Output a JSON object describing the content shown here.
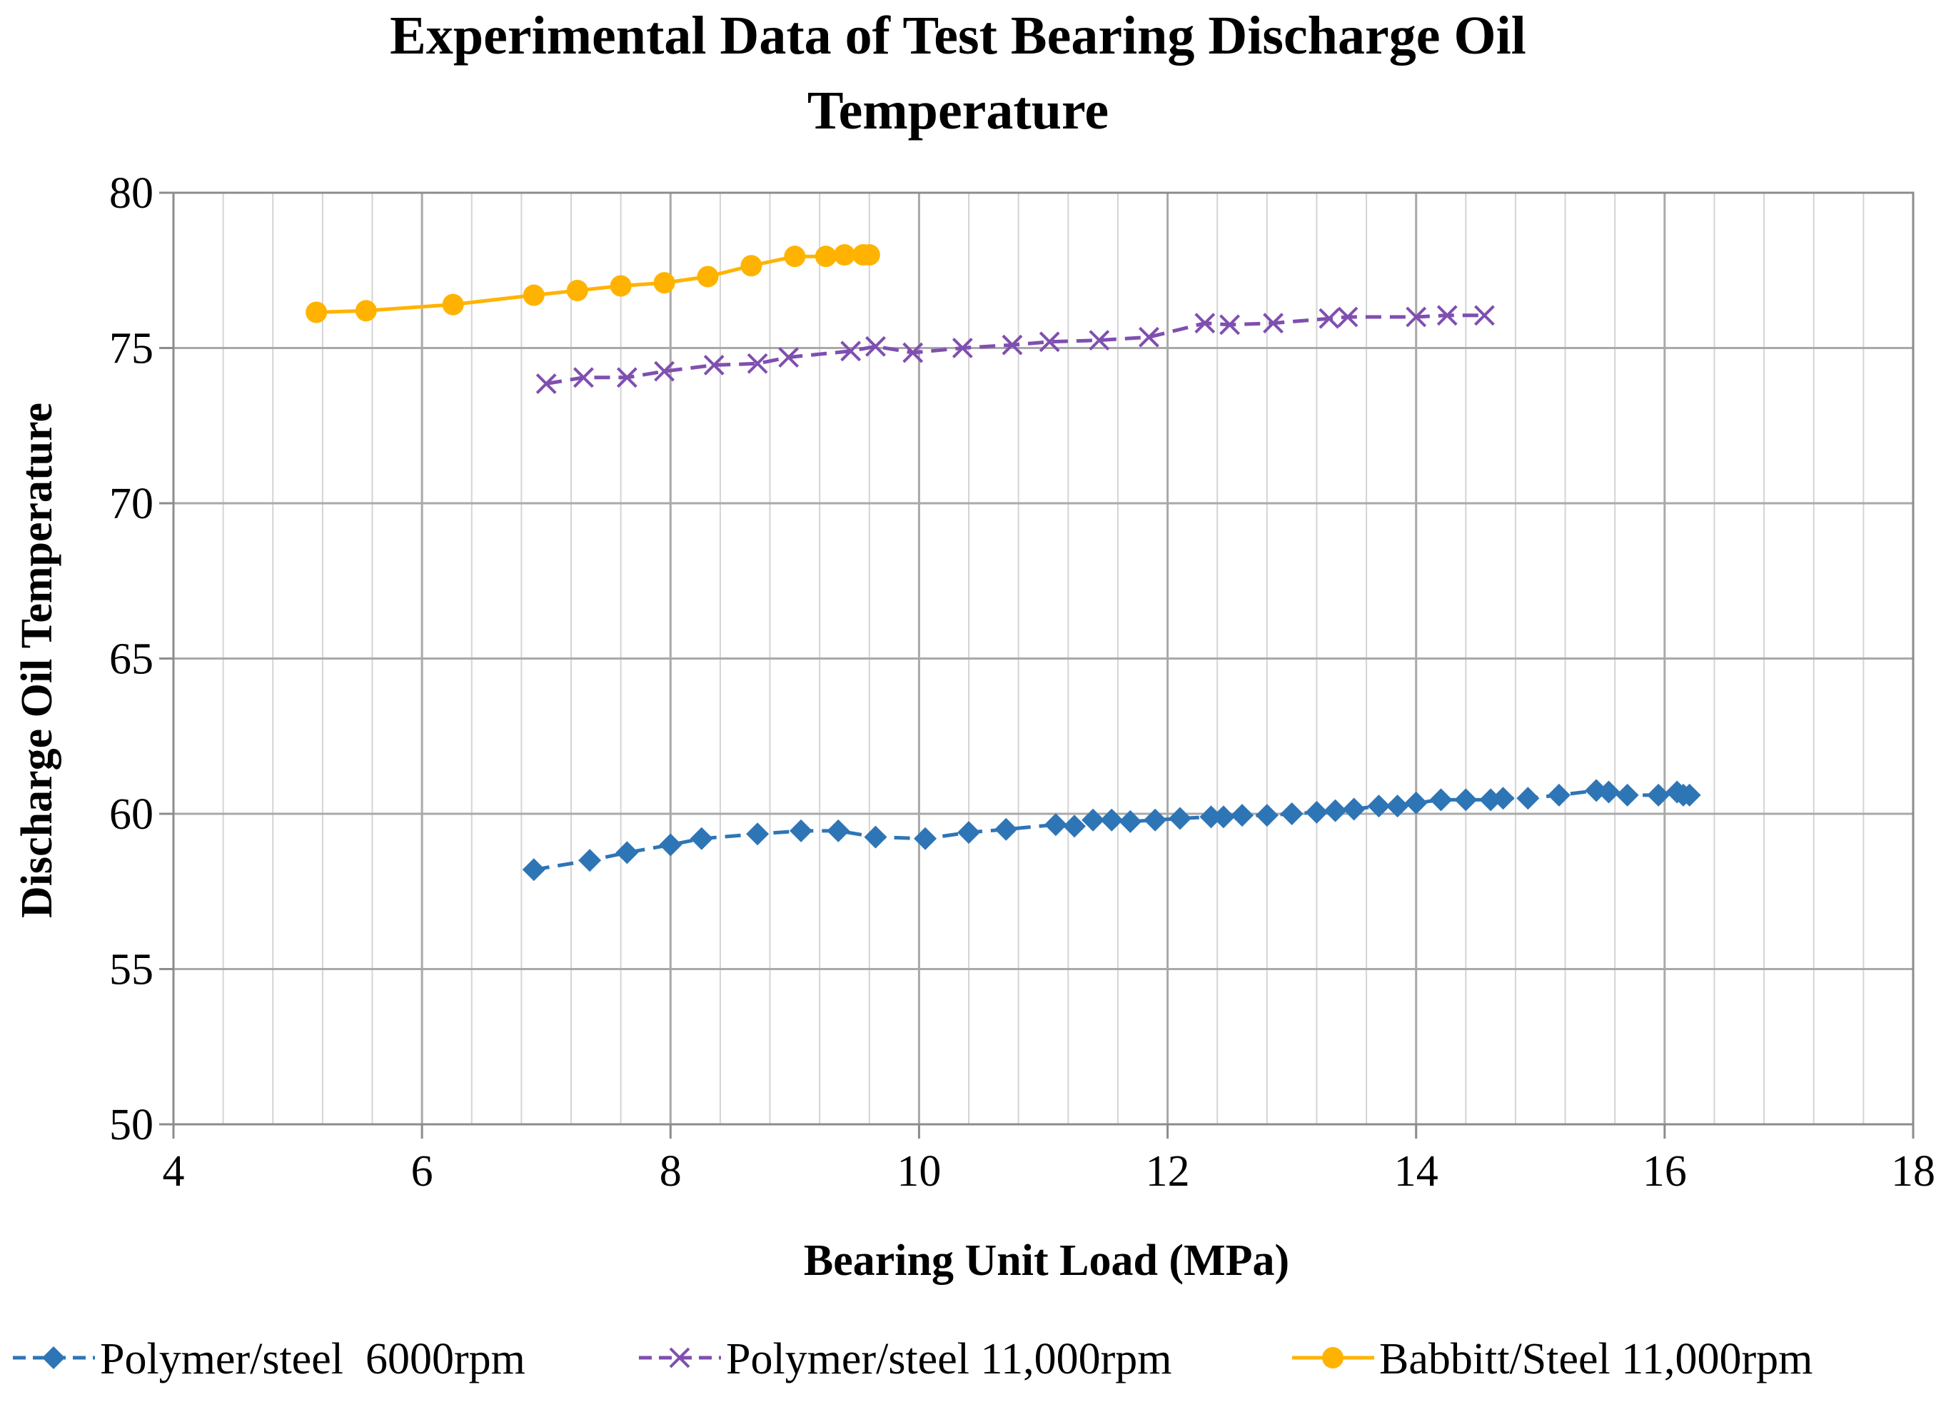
{
  "chart_data": {
    "type": "line",
    "title_line1": "Experimental Data of Test Bearing Discharge Oil",
    "title_line2": "Temperature",
    "xlabel": "Bearing Unit Load (MPa)",
    "ylabel": "Discharge Oil Temperature",
    "xlim": [
      4,
      18
    ],
    "ylim": [
      50,
      80
    ],
    "x_ticks": [
      "4",
      "6",
      "8",
      "10",
      "12",
      "14",
      "16",
      "18"
    ],
    "y_ticks": [
      "50",
      "55",
      "60",
      "65",
      "70",
      "75",
      "80"
    ],
    "grid": true,
    "legend_position": "bottom",
    "series": [
      {
        "name": "Polymer/steel  6000rpm",
        "color": "#2E75B6",
        "marker": "diamond",
        "line": "dashed",
        "x": [
          6.9,
          7.35,
          7.65,
          8.0,
          8.25,
          8.7,
          9.05,
          9.35,
          9.65,
          10.05,
          10.4,
          10.7,
          11.1,
          11.25,
          11.4,
          11.55,
          11.7,
          11.9,
          12.1,
          12.35,
          12.45,
          12.6,
          12.8,
          13.0,
          13.2,
          13.35,
          13.5,
          13.7,
          13.85,
          14.0,
          14.2,
          14.4,
          14.6,
          14.7,
          14.9,
          15.15,
          15.45,
          15.55,
          15.7,
          15.95,
          16.1,
          16.15,
          16.2
        ],
        "y": [
          58.2,
          58.5,
          58.75,
          59.0,
          59.2,
          59.35,
          59.45,
          59.45,
          59.25,
          59.2,
          59.4,
          59.5,
          59.65,
          59.6,
          59.8,
          59.8,
          59.75,
          59.8,
          59.85,
          59.9,
          59.9,
          59.95,
          59.95,
          60.0,
          60.05,
          60.1,
          60.15,
          60.25,
          60.25,
          60.35,
          60.45,
          60.45,
          60.45,
          60.5,
          60.5,
          60.6,
          60.75,
          60.7,
          60.6,
          60.6,
          60.7,
          60.6,
          60.6
        ]
      },
      {
        "name": "Polymer/steel 11,000rpm",
        "color": "#7F4FB0",
        "marker": "x",
        "line": "dashed",
        "x": [
          7.0,
          7.3,
          7.65,
          7.95,
          8.35,
          8.7,
          8.95,
          9.45,
          9.65,
          9.95,
          10.35,
          10.75,
          11.05,
          11.45,
          11.85,
          12.3,
          12.5,
          12.85,
          13.3,
          13.45,
          14.0,
          14.25,
          14.55
        ],
        "y": [
          73.85,
          74.05,
          74.05,
          74.25,
          74.45,
          74.5,
          74.7,
          74.9,
          75.05,
          74.85,
          75.0,
          75.1,
          75.2,
          75.25,
          75.35,
          75.8,
          75.75,
          75.8,
          75.95,
          76.0,
          76.0,
          76.05,
          76.05
        ]
      },
      {
        "name": "Babbitt/Steel 11,000rpm",
        "color": "#FFB300",
        "marker": "circle",
        "line": "solid",
        "x": [
          5.15,
          5.55,
          6.25,
          6.9,
          7.25,
          7.6,
          7.95,
          8.3,
          8.65,
          9.0,
          9.25,
          9.4,
          9.55,
          9.6
        ],
        "y": [
          76.15,
          76.2,
          76.4,
          76.7,
          76.85,
          77.0,
          77.1,
          77.3,
          77.65,
          77.95,
          77.95,
          78.0,
          78.0,
          78.0
        ]
      }
    ]
  }
}
